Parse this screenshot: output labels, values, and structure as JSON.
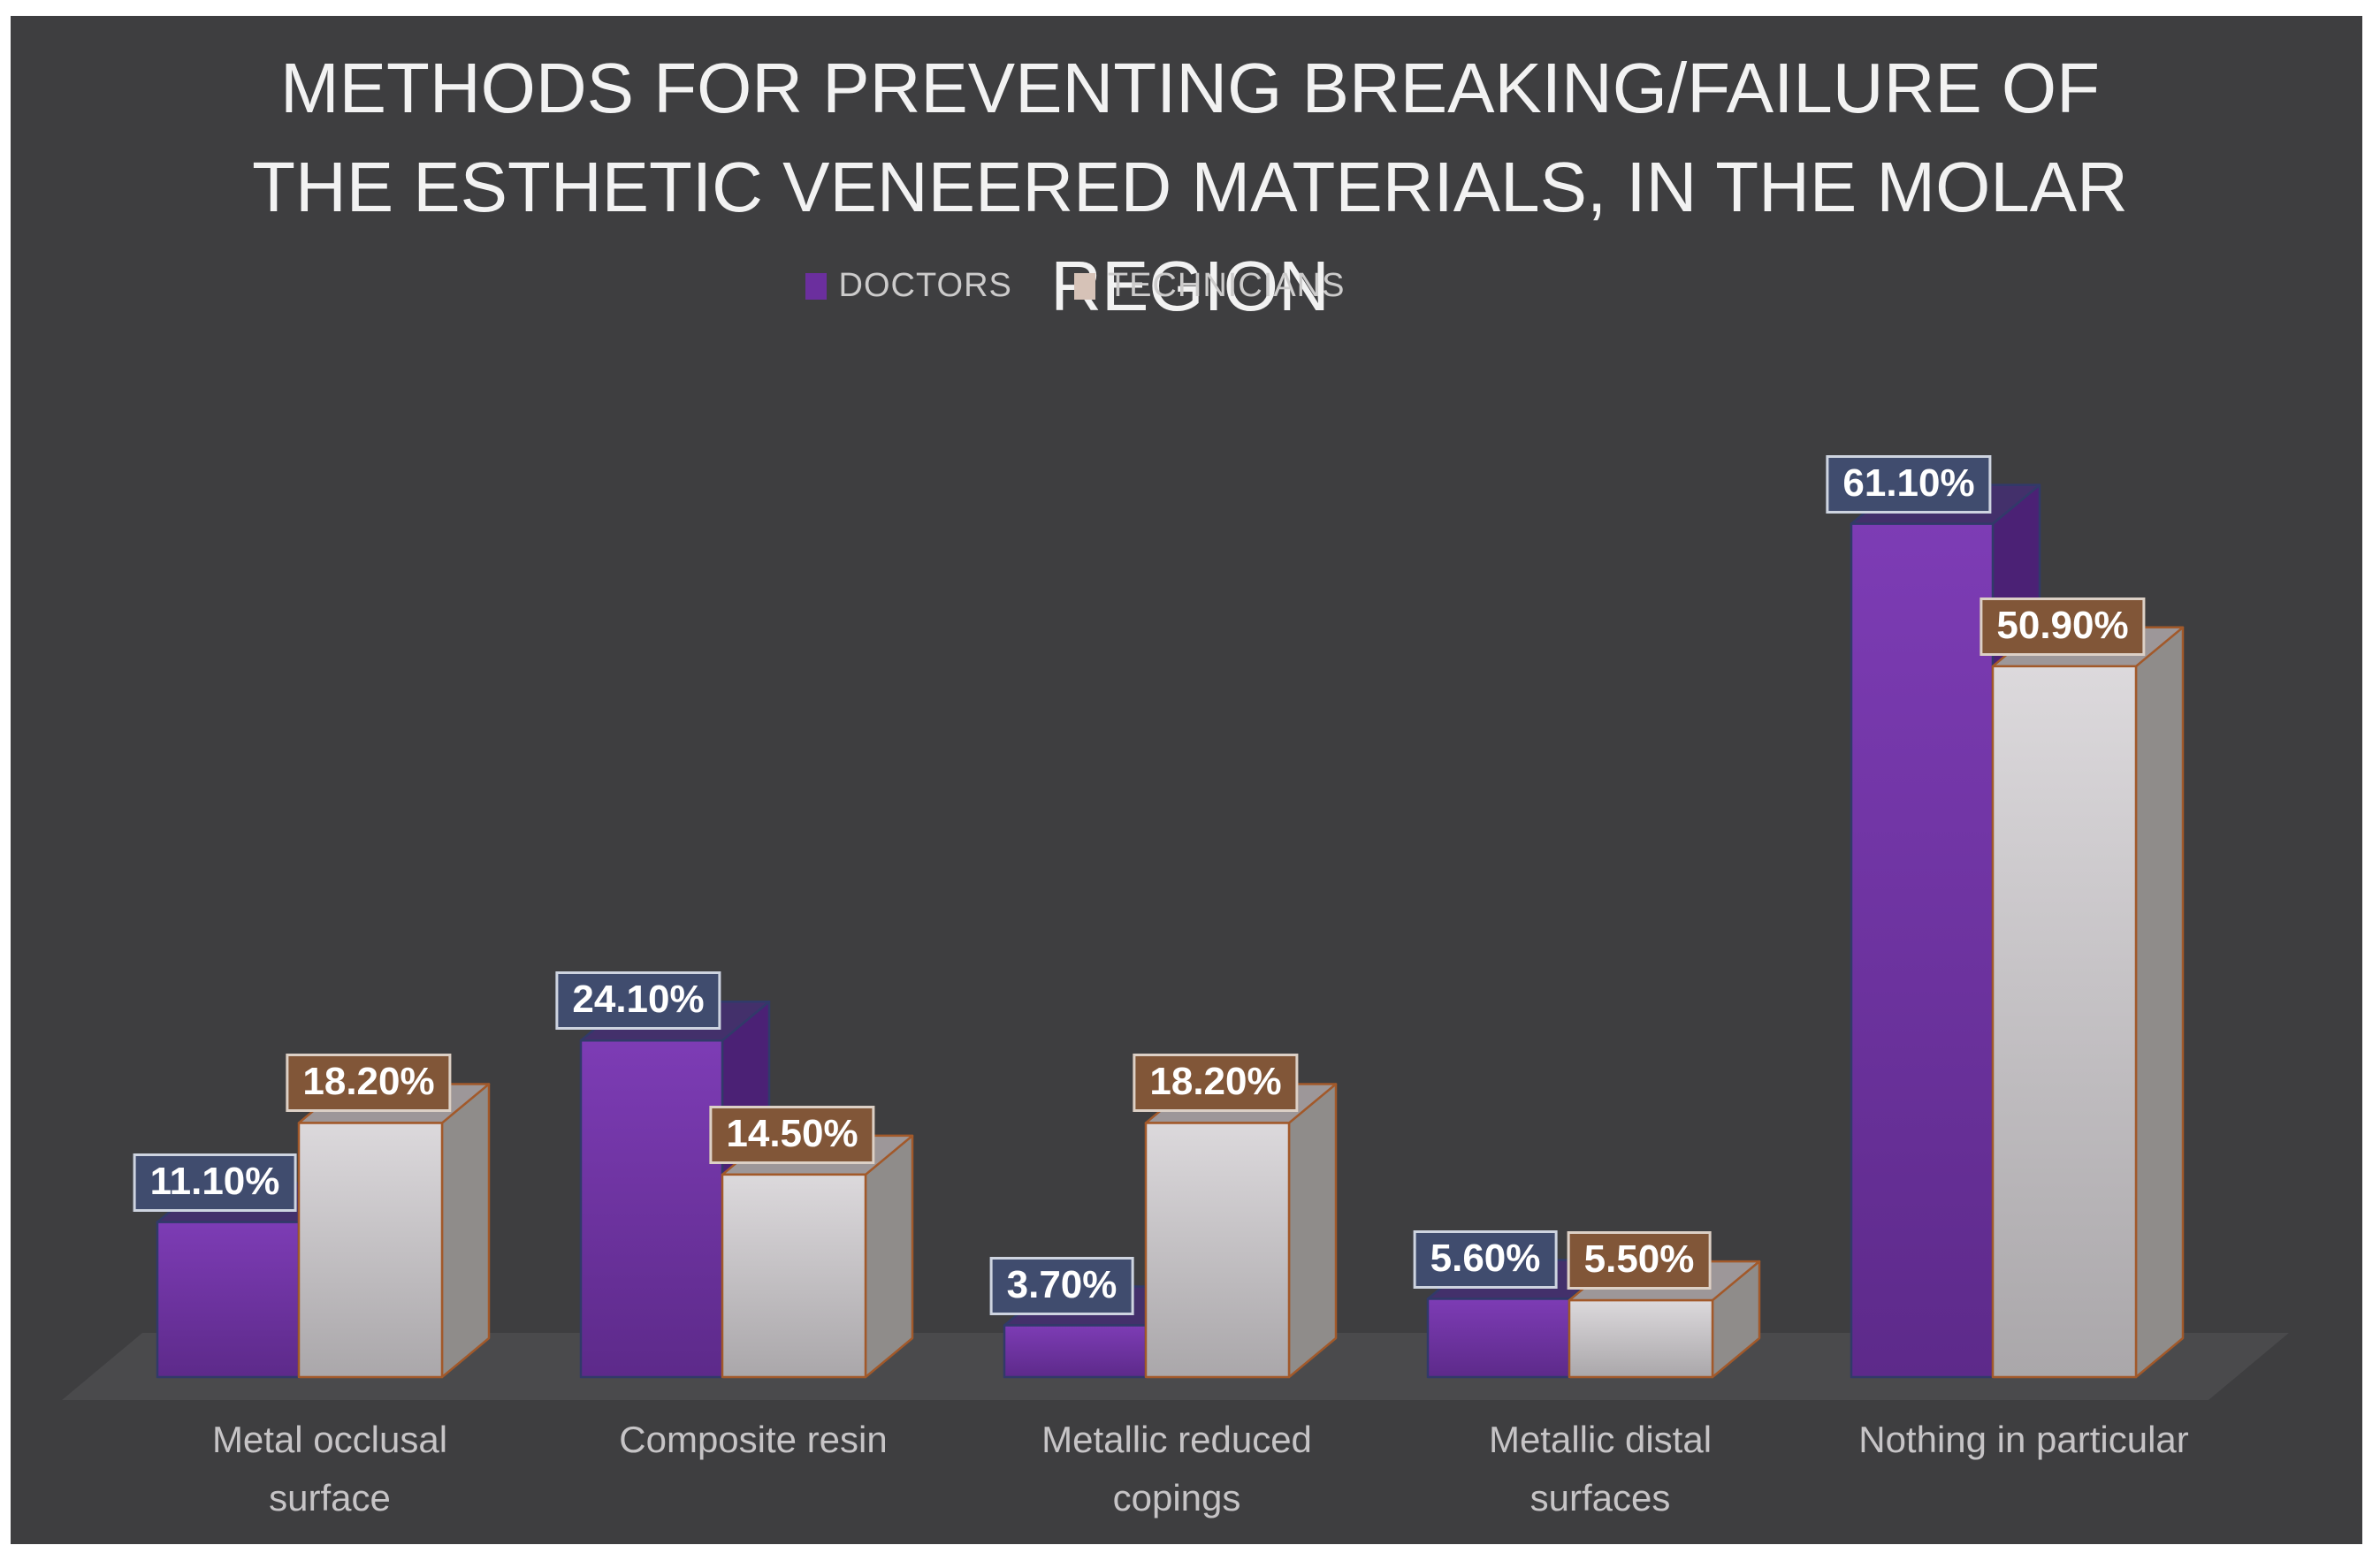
{
  "chart": {
    "background": "#3e3e40",
    "floor_color": "#4a4a4c",
    "title_color": "#f2f2f2",
    "category_label_color": "#c6c4c6"
  },
  "chart_data": {
    "type": "bar",
    "style": "3d-clustered-column",
    "title": "METHODS FOR PREVENTING BREAKING/FAILURE OF THE ESTHETIC VENEERED MATERIALS, IN THE MOLAR REGION",
    "legend_position": "top",
    "gridlines": false,
    "value_axis_visible": false,
    "ylim": [
      0,
      65
    ],
    "categories": [
      "Metal occlusal surface",
      "Composite resin",
      "Metallic reduced copings",
      "Metallic distal surfaces",
      "Nothing in particular"
    ],
    "series": [
      {
        "name": "DOCTORS",
        "values": [
          11.1,
          24.1,
          3.7,
          5.6,
          61.1
        ],
        "labels": [
          "11.10%",
          "24.10%",
          "3.70%",
          "5.60%",
          "61.10%"
        ],
        "color": "#6b2f9e",
        "legend_color": "#6b2f9e",
        "faces": {
          "front_top": "#7d3cb5",
          "front_bottom": "#5d2a8a",
          "side": "#4b2175",
          "top": "#43306b",
          "stroke": "#313a69"
        },
        "label_box": {
          "bg": "#404c6e",
          "border": "#ced4e0"
        }
      },
      {
        "name": "TECHNICIANS",
        "values": [
          18.2,
          14.5,
          18.2,
          5.5,
          50.9
        ],
        "labels": [
          "18.20%",
          "14.50%",
          "18.20%",
          "5.50%",
          "50.90%"
        ],
        "color": "#cfccce",
        "legend_color": "#d6c2b7",
        "faces": {
          "front_top": "#dcd9dc",
          "front_bottom": "#aaa7aa",
          "side": "#8f8c8a",
          "top": "#9d9799",
          "stroke": "#a2592a"
        },
        "label_box": {
          "bg": "#815638",
          "border": "#dcd0c6"
        }
      }
    ]
  }
}
